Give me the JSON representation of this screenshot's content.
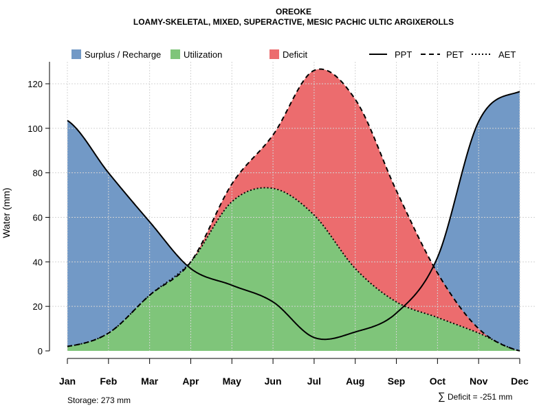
{
  "chart_data": {
    "type": "area",
    "title": "OREOKE",
    "subtitle": "LOAMY-SKELETAL, MIXED, SUPERACTIVE, MESIC PACHIC ULTIC ARGIXEROLLS",
    "ylabel": "Water (mm)",
    "xlabel": "",
    "ylim": [
      0,
      130
    ],
    "yticks": [
      0,
      20,
      40,
      60,
      80,
      100,
      120
    ],
    "grid": true,
    "legend_position": "top",
    "categories": [
      "Jan",
      "Feb",
      "Mar",
      "Apr",
      "May",
      "Jun",
      "Jul",
      "Aug",
      "Sep",
      "Oct",
      "Nov",
      "Dec"
    ],
    "series": [
      {
        "name": "PPT",
        "style": "solid",
        "values": [
          103.5,
          80,
          58,
          37,
          29.5,
          22,
          6,
          8.5,
          17,
          42,
          103,
          116.5
        ]
      },
      {
        "name": "PET",
        "style": "dashed",
        "values": [
          2,
          8,
          25,
          40,
          75,
          97,
          126,
          113,
          72,
          35,
          10,
          0
        ]
      },
      {
        "name": "AET",
        "style": "dotted",
        "values": [
          2,
          8,
          25,
          40,
          67,
          73,
          61,
          37,
          22,
          15,
          8,
          0
        ]
      }
    ],
    "fills": [
      {
        "name": "Surplus / Recharge",
        "color": "#7299C6"
      },
      {
        "name": "Utilization",
        "color": "#7FC57A"
      },
      {
        "name": "Deficit",
        "color": "#EC6C6E"
      }
    ],
    "annotations": {
      "storage": "Storage: 273 mm",
      "deficit_symbol": "∑",
      "deficit": "Deficit = -251 mm"
    }
  },
  "legend": {
    "surplus": "Surplus / Recharge",
    "utilization": "Utilization",
    "deficit": "Deficit",
    "ppt": "PPT",
    "pet": "PET",
    "aet": "AET"
  }
}
